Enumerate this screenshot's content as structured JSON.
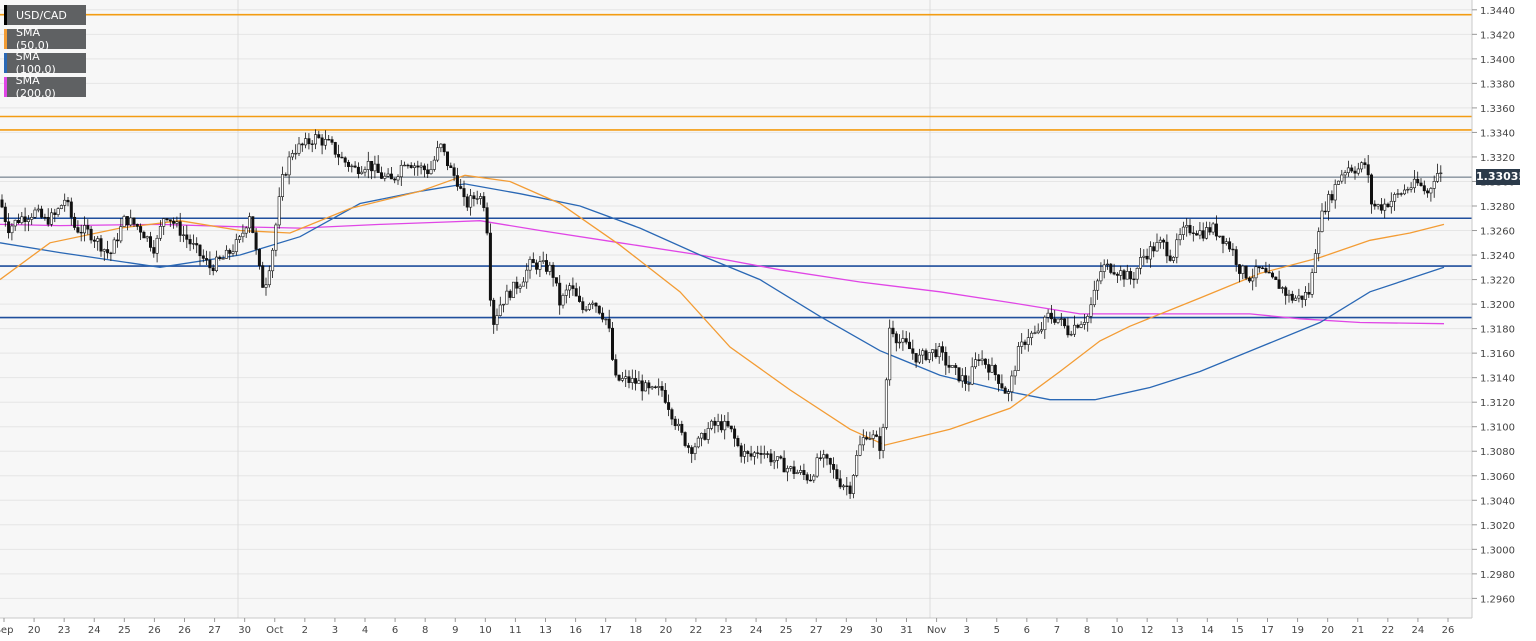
{
  "chart_data": {
    "type": "candlestick",
    "title": "USD/CAD",
    "ylim": [
      1.2944,
      1.3448
    ],
    "y_ticks": [
      "1.3440",
      "1.3420",
      "1.3400",
      "1.3380",
      "1.3360",
      "1.3340",
      "1.3320",
      "1.3300",
      "1.3280",
      "1.3260",
      "1.3240",
      "1.3220",
      "1.3200",
      "1.3180",
      "1.3160",
      "1.3140",
      "1.3120",
      "1.3100",
      "1.3080",
      "1.3060",
      "1.3040",
      "1.3020",
      "1.3000",
      "1.2980",
      "1.2960"
    ],
    "x_ticks": [
      "Sep",
      "20",
      "23",
      "24",
      "25",
      "26",
      "26",
      "27",
      "30",
      "Oct",
      "2",
      "3",
      "4",
      "6",
      "8",
      "9",
      "10",
      "11",
      "13",
      "16",
      "17",
      "18",
      "20",
      "22",
      "23",
      "24",
      "25",
      "27",
      "29",
      "30",
      "31",
      "Nov",
      "3",
      "5",
      "6",
      "7",
      "8",
      "10",
      "12",
      "13",
      "14",
      "15",
      "17",
      "19",
      "20",
      "21",
      "22",
      "24",
      "26"
    ],
    "current_price": "1.33035",
    "current_price_value": 1.33035,
    "legend": [
      {
        "name": "USD/CAD",
        "color": "#000000"
      },
      {
        "name": "SMA (50,0)",
        "color": "#f39c34"
      },
      {
        "name": "SMA (100,0)",
        "color": "#2a68b5"
      },
      {
        "name": "SMA (200,0)",
        "color": "#e046e6"
      }
    ],
    "resistance_levels": [
      1.3436,
      1.3353,
      1.3342
    ],
    "support_levels": [
      1.327,
      1.3231,
      1.3189
    ],
    "close_path": [
      [
        0,
        1.3285
      ],
      [
        8,
        1.3262
      ],
      [
        20,
        1.327
      ],
      [
        35,
        1.3275
      ],
      [
        45,
        1.3268
      ],
      [
        55,
        1.3272
      ],
      [
        65,
        1.3286
      ],
      [
        75,
        1.3262
      ],
      [
        90,
        1.3258
      ],
      [
        110,
        1.324
      ],
      [
        125,
        1.327
      ],
      [
        140,
        1.3262
      ],
      [
        155,
        1.3245
      ],
      [
        165,
        1.3275
      ],
      [
        180,
        1.326
      ],
      [
        195,
        1.3245
      ],
      [
        210,
        1.323
      ],
      [
        225,
        1.3238
      ],
      [
        240,
        1.3252
      ],
      [
        250,
        1.3275
      ],
      [
        258,
        1.3232
      ],
      [
        264,
        1.3212
      ],
      [
        272,
        1.3242
      ],
      [
        282,
        1.33
      ],
      [
        292,
        1.3325
      ],
      [
        305,
        1.333
      ],
      [
        315,
        1.3336
      ],
      [
        330,
        1.333
      ],
      [
        342,
        1.3318
      ],
      [
        355,
        1.331
      ],
      [
        368,
        1.3315
      ],
      [
        380,
        1.3305
      ],
      [
        392,
        1.33
      ],
      [
        405,
        1.3318
      ],
      [
        418,
        1.3312
      ],
      [
        430,
        1.3308
      ],
      [
        440,
        1.333
      ],
      [
        450,
        1.331
      ],
      [
        458,
        1.33
      ],
      [
        465,
        1.328
      ],
      [
        478,
        1.329
      ],
      [
        486,
        1.328
      ],
      [
        492,
        1.3182
      ],
      [
        500,
        1.32
      ],
      [
        510,
        1.321
      ],
      [
        522,
        1.322
      ],
      [
        530,
        1.3232
      ],
      [
        540,
        1.3232
      ],
      [
        552,
        1.3228
      ],
      [
        560,
        1.32
      ],
      [
        570,
        1.3215
      ],
      [
        582,
        1.3195
      ],
      [
        592,
        1.3205
      ],
      [
        600,
        1.3195
      ],
      [
        608,
        1.3185
      ],
      [
        615,
        1.3138
      ],
      [
        625,
        1.3138
      ],
      [
        638,
        1.3136
      ],
      [
        650,
        1.3128
      ],
      [
        662,
        1.313
      ],
      [
        670,
        1.3115
      ],
      [
        680,
        1.3095
      ],
      [
        690,
        1.3082
      ],
      [
        700,
        1.3088
      ],
      [
        710,
        1.31
      ],
      [
        720,
        1.3102
      ],
      [
        730,
        1.3098
      ],
      [
        740,
        1.308
      ],
      [
        750,
        1.3075
      ],
      [
        760,
        1.3082
      ],
      [
        770,
        1.3075
      ],
      [
        780,
        1.307
      ],
      [
        790,
        1.3065
      ],
      [
        800,
        1.3062
      ],
      [
        810,
        1.3058
      ],
      [
        820,
        1.3075
      ],
      [
        830,
        1.3068
      ],
      [
        840,
        1.3055
      ],
      [
        850,
        1.305
      ],
      [
        858,
        1.308
      ],
      [
        866,
        1.3095
      ],
      [
        875,
        1.309
      ],
      [
        882,
        1.3082
      ],
      [
        890,
        1.3185
      ],
      [
        898,
        1.317
      ],
      [
        908,
        1.3165
      ],
      [
        918,
        1.3155
      ],
      [
        928,
        1.316
      ],
      [
        938,
        1.3162
      ],
      [
        948,
        1.315
      ],
      [
        958,
        1.3142
      ],
      [
        968,
        1.3135
      ],
      [
        978,
        1.3158
      ],
      [
        988,
        1.315
      ],
      [
        998,
        1.314
      ],
      [
        1008,
        1.3125
      ],
      [
        1018,
        1.316
      ],
      [
        1028,
        1.3175
      ],
      [
        1038,
        1.3175
      ],
      [
        1048,
        1.319
      ],
      [
        1058,
        1.3188
      ],
      [
        1068,
        1.3178
      ],
      [
        1078,
        1.3185
      ],
      [
        1088,
        1.319
      ],
      [
        1095,
        1.321
      ],
      [
        1102,
        1.323
      ],
      [
        1112,
        1.323
      ],
      [
        1122,
        1.3225
      ],
      [
        1132,
        1.322
      ],
      [
        1142,
        1.3238
      ],
      [
        1152,
        1.3245
      ],
      [
        1162,
        1.325
      ],
      [
        1172,
        1.3238
      ],
      [
        1182,
        1.3258
      ],
      [
        1192,
        1.3262
      ],
      [
        1202,
        1.3258
      ],
      [
        1212,
        1.3262
      ],
      [
        1222,
        1.3255
      ],
      [
        1232,
        1.3245
      ],
      [
        1240,
        1.3228
      ],
      [
        1250,
        1.3222
      ],
      [
        1260,
        1.3228
      ],
      [
        1270,
        1.322
      ],
      [
        1280,
        1.3215
      ],
      [
        1290,
        1.3205
      ],
      [
        1300,
        1.3205
      ],
      [
        1310,
        1.321
      ],
      [
        1318,
        1.3262
      ],
      [
        1325,
        1.328
      ],
      [
        1332,
        1.329
      ],
      [
        1340,
        1.3305
      ],
      [
        1348,
        1.3312
      ],
      [
        1358,
        1.331
      ],
      [
        1366,
        1.3315
      ],
      [
        1372,
        1.328
      ],
      [
        1382,
        1.328
      ],
      [
        1392,
        1.3285
      ],
      [
        1400,
        1.329
      ],
      [
        1408,
        1.3295
      ],
      [
        1418,
        1.3298
      ],
      [
        1428,
        1.329
      ],
      [
        1436,
        1.3308
      ],
      [
        1444,
        1.3303
      ]
    ],
    "sma_50_path": [
      [
        0,
        1.322
      ],
      [
        50,
        1.325
      ],
      [
        120,
        1.3262
      ],
      [
        180,
        1.3268
      ],
      [
        240,
        1.326
      ],
      [
        290,
        1.3258
      ],
      [
        350,
        1.3278
      ],
      [
        420,
        1.3292
      ],
      [
        465,
        1.3305
      ],
      [
        510,
        1.33
      ],
      [
        560,
        1.3282
      ],
      [
        620,
        1.3248
      ],
      [
        680,
        1.321
      ],
      [
        730,
        1.3165
      ],
      [
        790,
        1.313
      ],
      [
        850,
        1.3098
      ],
      [
        885,
        1.3085
      ],
      [
        950,
        1.3098
      ],
      [
        1010,
        1.3115
      ],
      [
        1060,
        1.3145
      ],
      [
        1100,
        1.317
      ],
      [
        1130,
        1.3182
      ],
      [
        1200,
        1.3205
      ],
      [
        1260,
        1.3225
      ],
      [
        1320,
        1.3238
      ],
      [
        1370,
        1.3252
      ],
      [
        1410,
        1.3258
      ],
      [
        1444,
        1.3265
      ]
    ],
    "sma_100_path": [
      [
        0,
        1.325
      ],
      [
        60,
        1.3242
      ],
      [
        160,
        1.323
      ],
      [
        240,
        1.324
      ],
      [
        300,
        1.3255
      ],
      [
        360,
        1.3282
      ],
      [
        420,
        1.3292
      ],
      [
        465,
        1.3298
      ],
      [
        520,
        1.329
      ],
      [
        580,
        1.328
      ],
      [
        640,
        1.3262
      ],
      [
        700,
        1.324
      ],
      [
        760,
        1.322
      ],
      [
        820,
        1.319
      ],
      [
        880,
        1.3162
      ],
      [
        940,
        1.3142
      ],
      [
        1000,
        1.313
      ],
      [
        1050,
        1.3122
      ],
      [
        1095,
        1.3122
      ],
      [
        1150,
        1.3132
      ],
      [
        1200,
        1.3145
      ],
      [
        1260,
        1.3165
      ],
      [
        1320,
        1.3185
      ],
      [
        1370,
        1.321
      ],
      [
        1444,
        1.323
      ]
    ],
    "sma_200_path": [
      [
        0,
        1.3265
      ],
      [
        60,
        1.3264
      ],
      [
        160,
        1.3265
      ],
      [
        240,
        1.3263
      ],
      [
        300,
        1.3262
      ],
      [
        380,
        1.3265
      ],
      [
        450,
        1.3267
      ],
      [
        480,
        1.3268
      ],
      [
        540,
        1.326
      ],
      [
        620,
        1.325
      ],
      [
        700,
        1.324
      ],
      [
        780,
        1.3228
      ],
      [
        860,
        1.3218
      ],
      [
        940,
        1.321
      ],
      [
        1020,
        1.32
      ],
      [
        1080,
        1.3192
      ],
      [
        1150,
        1.3192
      ],
      [
        1250,
        1.3192
      ],
      [
        1300,
        1.3188
      ],
      [
        1360,
        1.3185
      ],
      [
        1444,
        1.3184
      ]
    ]
  }
}
